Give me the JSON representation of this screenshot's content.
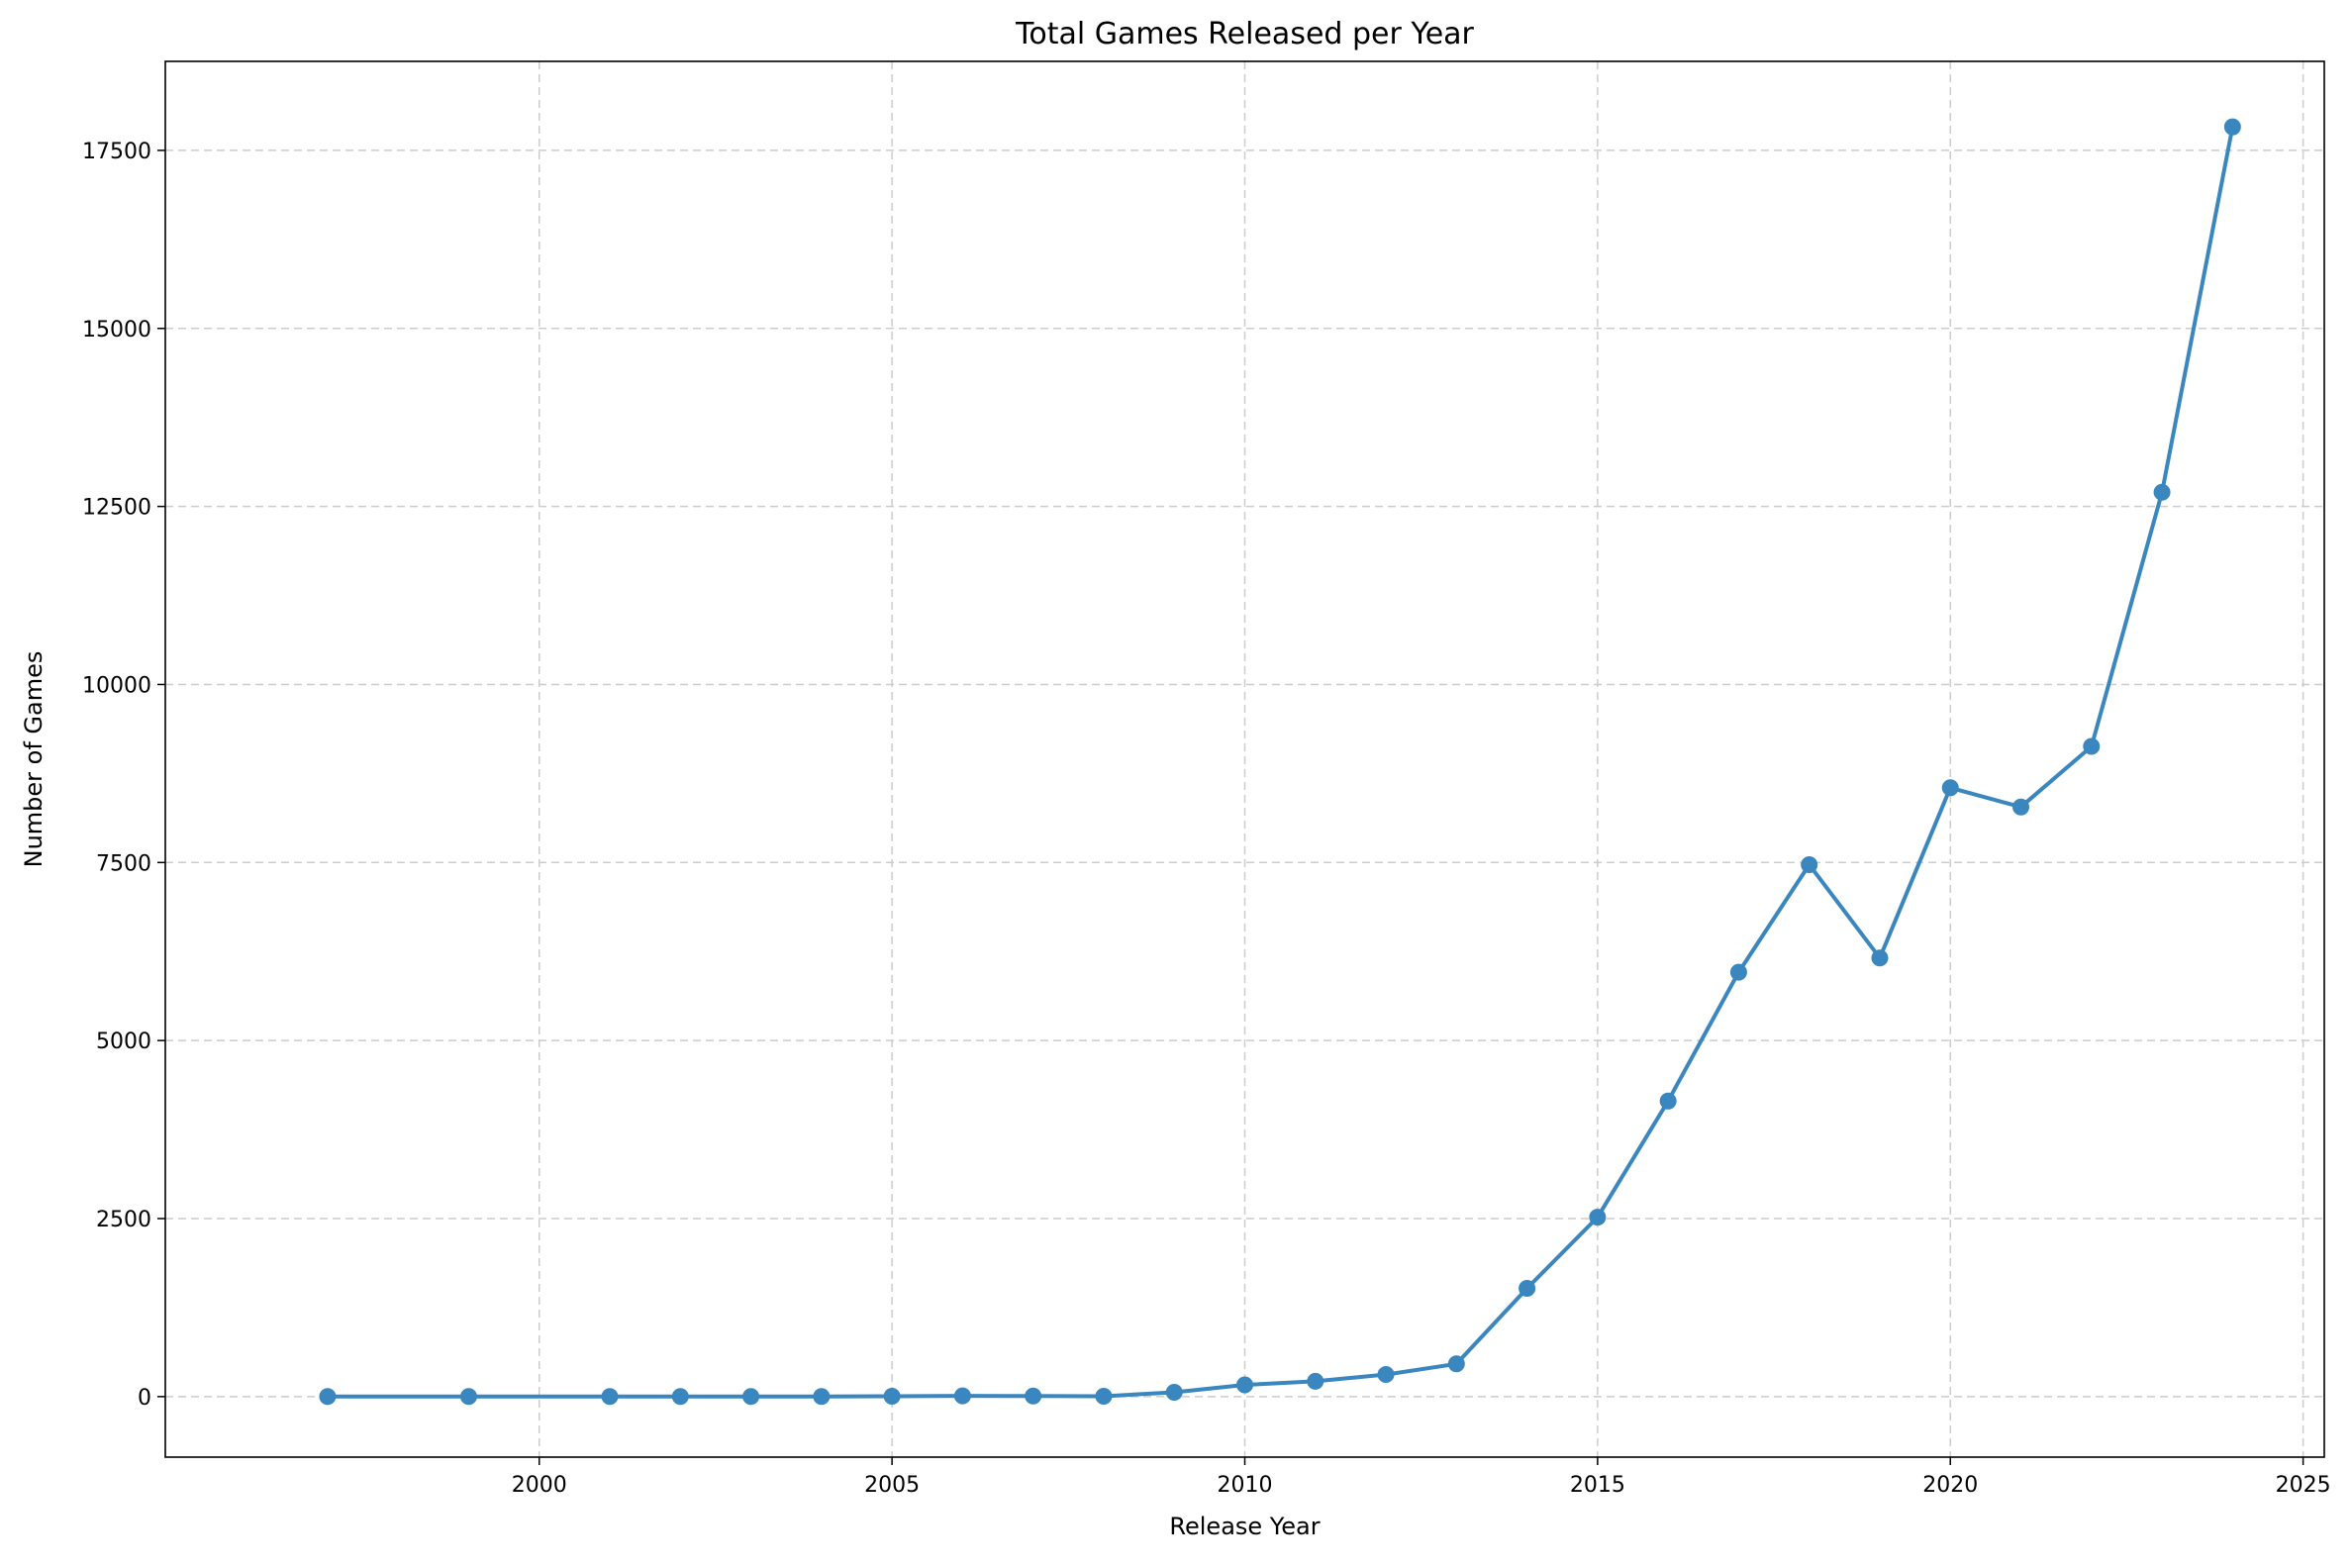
{
  "chart_data": {
    "type": "line",
    "title": "Total Games Released per Year",
    "xlabel": "Release Year",
    "ylabel": "Number of Games",
    "xlim": [
      1994.7,
      2025.3
    ],
    "ylim": [
      -850,
      18750
    ],
    "xticks": [
      2000,
      2005,
      2010,
      2015,
      2020,
      2025
    ],
    "xtick_labels": [
      "2000",
      "2005",
      "2010",
      "2015",
      "2020",
      "2025"
    ],
    "yticks": [
      0,
      2500,
      5000,
      7500,
      10000,
      12500,
      15000,
      17500
    ],
    "ytick_labels": [
      "0",
      "2500",
      "5000",
      "7500",
      "10000",
      "12500",
      "15000",
      "17500"
    ],
    "grid": true,
    "color": "#3a86bf",
    "series": [
      {
        "x": [
          1997,
          1999,
          2001,
          2002,
          2003,
          2004,
          2005,
          2006,
          2007,
          2008,
          2009,
          2010,
          2011,
          2012,
          2013,
          2014,
          2015,
          2016,
          2017,
          2018,
          2019,
          2020,
          2021,
          2022,
          2023,
          2024
        ],
        "values": [
          1,
          1,
          2,
          1,
          2,
          2,
          5,
          10,
          8,
          5,
          60,
          165,
          215,
          310,
          460,
          1520,
          2520,
          4150,
          5960,
          7470,
          6160,
          8550,
          8280,
          9130,
          12700,
          17830
        ]
      }
    ]
  }
}
